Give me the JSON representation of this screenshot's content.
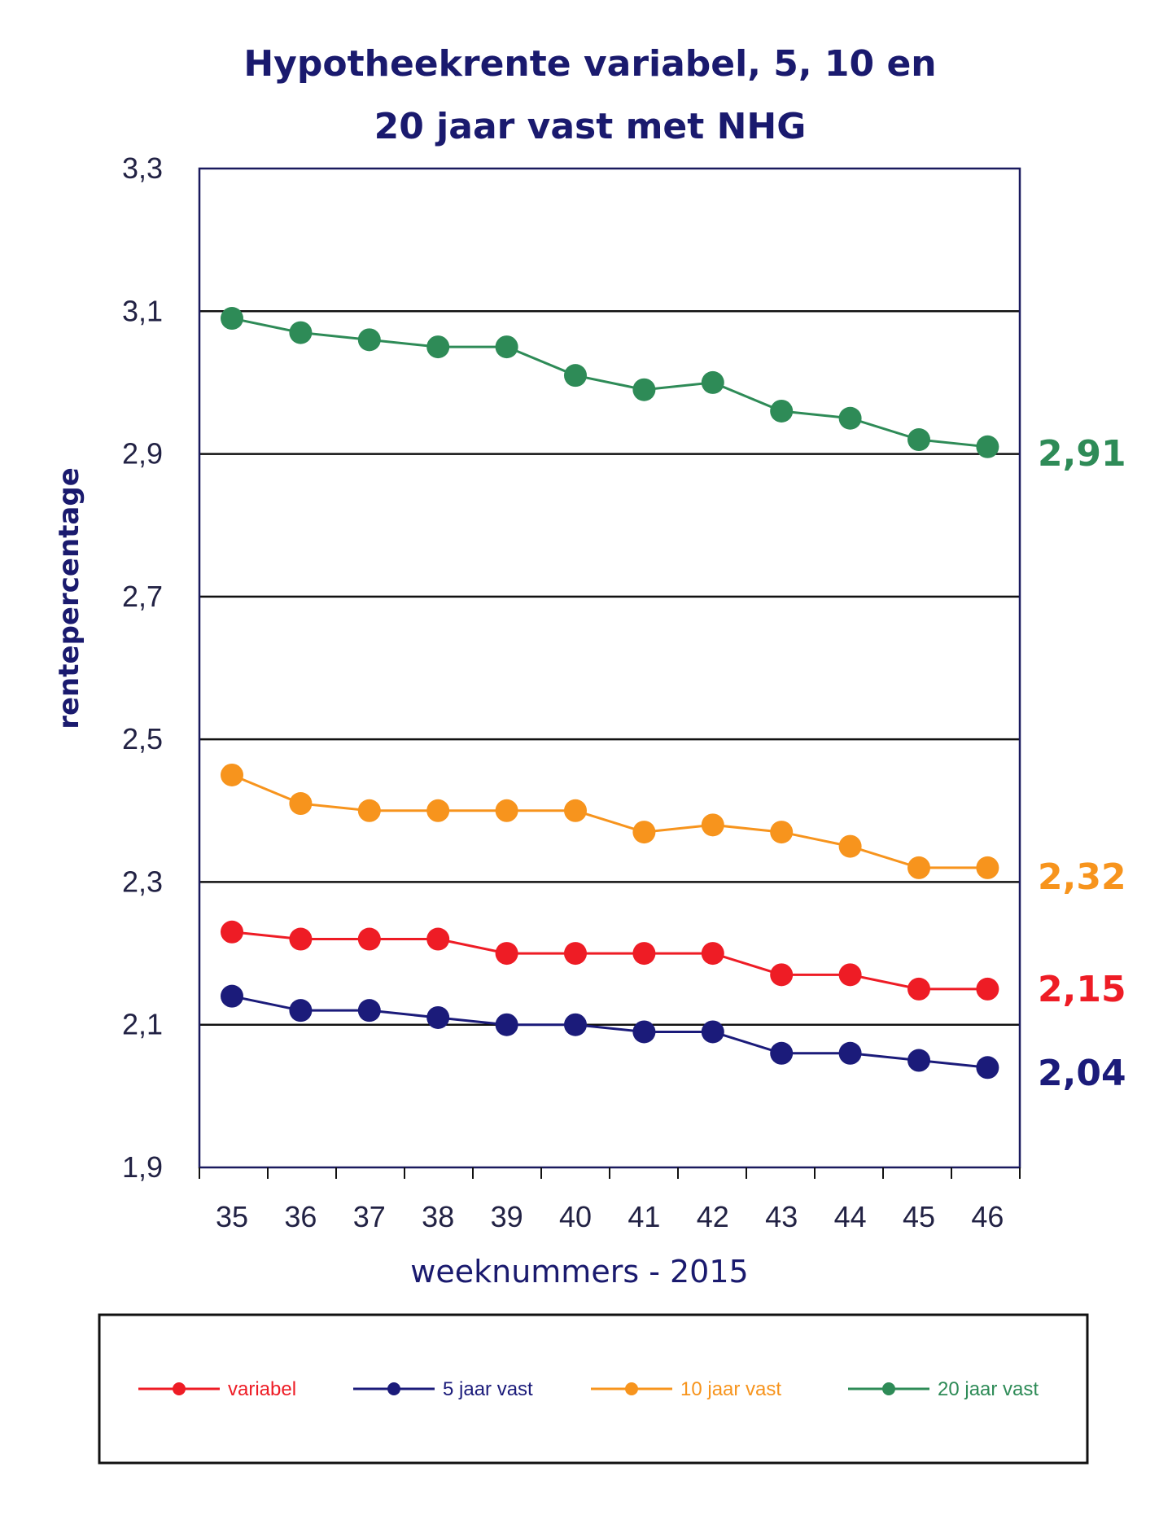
{
  "chart_data": {
    "type": "line",
    "title": [
      "Hypotheekrente variabel, 5, 10 en",
      "20 jaar vast met NHG"
    ],
    "xlabel": "weeknummers - 2015",
    "ylabel": "rentepercentage",
    "categories": [
      "35",
      "36",
      "37",
      "38",
      "39",
      "40",
      "41",
      "42",
      "43",
      "44",
      "45",
      "46"
    ],
    "ylim": [
      1.9,
      3.3
    ],
    "yticks": [
      "1,9",
      "2,1",
      "2,3",
      "2,5",
      "2,7",
      "2,9",
      "3,1",
      "3,3"
    ],
    "ytick_values": [
      1.9,
      2.1,
      2.3,
      2.5,
      2.7,
      2.9,
      3.1,
      3.3
    ],
    "grid": true,
    "legend_position": "bottom",
    "series": [
      {
        "name": "variabel",
        "color": "#ee1c25",
        "values": [
          2.23,
          2.22,
          2.22,
          2.22,
          2.2,
          2.2,
          2.2,
          2.2,
          2.17,
          2.17,
          2.15,
          2.15
        ],
        "end_label": "2,15"
      },
      {
        "name": "5 jaar vast",
        "color": "#1b1b7a",
        "values": [
          2.14,
          2.12,
          2.12,
          2.11,
          2.1,
          2.1,
          2.09,
          2.09,
          2.06,
          2.06,
          2.05,
          2.04
        ],
        "end_label": "2,04"
      },
      {
        "name": "10 jaar vast",
        "color": "#f7941d",
        "values": [
          2.45,
          2.41,
          2.4,
          2.4,
          2.4,
          2.4,
          2.37,
          2.38,
          2.37,
          2.35,
          2.32,
          2.32
        ],
        "end_label": "2,32"
      },
      {
        "name": "20 jaar vast",
        "color": "#2e8b57",
        "values": [
          3.09,
          3.07,
          3.06,
          3.05,
          3.05,
          3.01,
          2.99,
          3.0,
          2.96,
          2.95,
          2.92,
          2.91
        ],
        "end_label": "2,91"
      }
    ]
  }
}
